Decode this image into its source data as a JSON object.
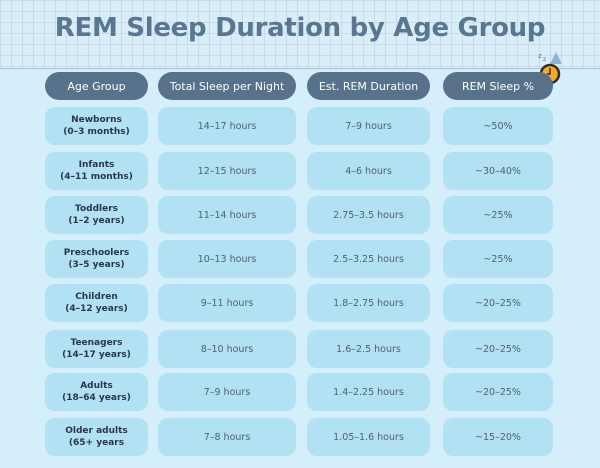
{
  "title": "REM Sleep Duration by Age Group",
  "headers": [
    "Age Group",
    "Total Sleep per Night",
    "Est. REM Duration",
    "REM Sleep %"
  ],
  "rows": [
    {
      "group": "Newborns",
      "range": "(0–3 months)",
      "total": "14–17 hours",
      "rem": "7–9 hours",
      "pct": "~50%"
    },
    {
      "group": "Infants",
      "range": "(4–11 months)",
      "total": "12–15 hours",
      "rem": "4–6 hours",
      "pct": "~30–40%"
    },
    {
      "group": "Toddlers",
      "range": "(1–2 years)",
      "total": "11–14 hours",
      "rem": "2.75–3.5 hours",
      "pct": "~25%"
    },
    {
      "group": "Preschoolers",
      "range": "(3–5 years)",
      "total": "10–13 hours",
      "rem": "2.5–3.25 hours",
      "pct": "~25%"
    },
    {
      "group": "Children",
      "range": "(4–12 years)",
      "total": "9–11 hours",
      "rem": "1.8–2.75 hours",
      "pct": "~20–25%"
    },
    {
      "group": "Teenagers",
      "range": "(14–17 years)",
      "total": "8–10 hours",
      "rem": "1.6–2.5 hours",
      "pct": "~20–25%"
    },
    {
      "group": "Adults",
      "range": "(18–64 years)",
      "total": "7–9 hours",
      "rem": "1.4–2.25 hours",
      "pct": "~20–25%"
    },
    {
      "group": "Older adults",
      "range": "(65+ years",
      "total": "7–8 hours",
      "rem": "1.05–1.6 hours",
      "pct": "~15–20%"
    }
  ],
  "icon": "sleeping-clock-icon",
  "colors": {
    "header": "#57728a",
    "cell": "#b1e1f3",
    "title": "#5a7791",
    "background": "#d5eefb"
  }
}
